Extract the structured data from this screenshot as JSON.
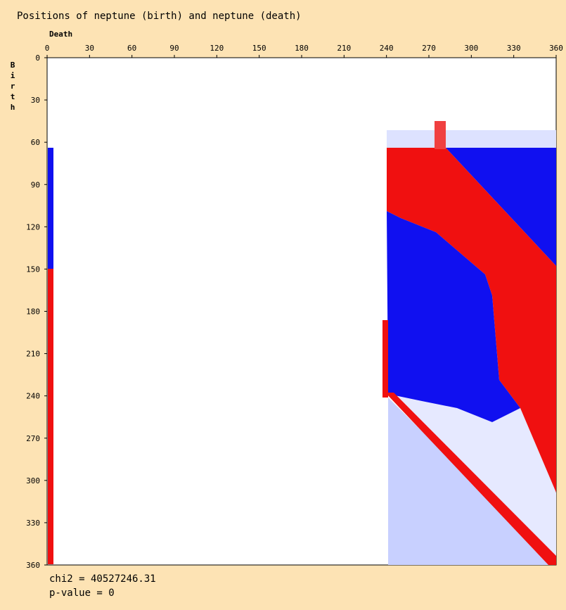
{
  "chart_data": {
    "type": "heatmap",
    "title": "Positions of neptune (birth) and neptune (death)",
    "x_label": "Death",
    "y_label": "Birth",
    "xlim": [
      0,
      360
    ],
    "ylim": [
      0,
      360
    ],
    "xticks": [
      0,
      30,
      60,
      90,
      120,
      150,
      180,
      210,
      240,
      270,
      300,
      330,
      360
    ],
    "yticks": [
      0,
      30,
      60,
      90,
      120,
      150,
      180,
      210,
      240,
      270,
      300,
      330,
      360
    ],
    "stats": [
      "chi2 = 40527246.31",
      "p-value = 0"
    ]
  }
}
